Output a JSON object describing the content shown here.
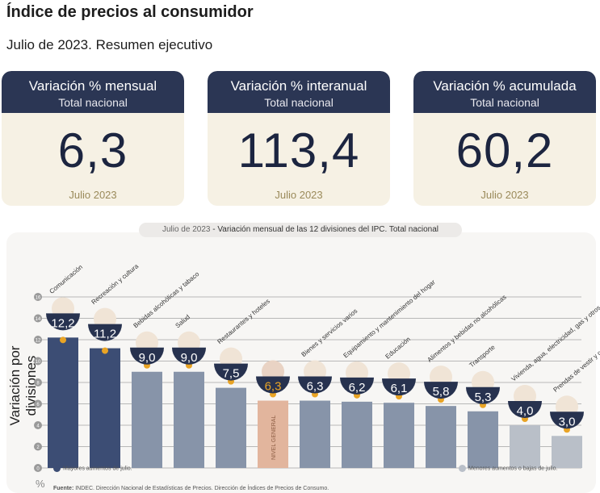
{
  "header": {
    "title": "Índice de precios al consumidor",
    "subtitle": "Julio de 2023. Resumen ejecutivo"
  },
  "cards": [
    {
      "title": "Variación % mensual",
      "sub": "Total nacional",
      "value": "6,3",
      "footer": "Julio 2023"
    },
    {
      "title": "Variación % interanual",
      "sub": "Total nacional",
      "value": "113,4",
      "footer": "Julio 2023"
    },
    {
      "title": "Variación % acumulada",
      "sub": "Total nacional",
      "value": "60,2",
      "footer": "Julio 2023"
    }
  ],
  "chart_data": {
    "type": "bar",
    "title_date": "Julio de 2023",
    "title": " - Variación mensual de las 12 divisiones del IPC. Total nacional",
    "ylabel": "Variación por divisiones",
    "yunit": "%",
    "ylim": [
      0,
      16
    ],
    "yticks": [
      0,
      2,
      4,
      6,
      8,
      10,
      12,
      14,
      16
    ],
    "categories": [
      "Comunicación",
      "Recreación y cultura",
      "Bebidas alcohólicas y tabaco",
      "Salud",
      "Restaurantes y hoteles",
      "NIVEL GENERAL",
      "Bienes y servicios varios",
      "Equipamiento y mantenimiento del hogar",
      "Educación",
      "Alimentos y bebidas no alcohólicas",
      "Transporte",
      "Vivienda, agua, electricidad, gas y otros combustibles",
      "Prendas de vestir y calzado"
    ],
    "values": [
      12.2,
      11.2,
      9.0,
      9.0,
      7.5,
      6.3,
      6.3,
      6.2,
      6.1,
      5.8,
      5.3,
      4.0,
      3.0
    ],
    "value_labels": [
      "12,2",
      "11,2",
      "9,0",
      "9,0",
      "7,5",
      "6,3",
      "6,3",
      "6,2",
      "6,1",
      "5,8",
      "5,3",
      "4,0",
      "3,0"
    ],
    "groups": [
      "high",
      "high",
      "mid",
      "mid",
      "mid",
      "general",
      "mid",
      "mid",
      "mid",
      "mid",
      "mid",
      "low",
      "low"
    ],
    "colors": {
      "high": "#3c4d74",
      "mid": "#8794a9",
      "low": "#b9bfc8",
      "general": "#e2b59d",
      "bowl": "#27324f",
      "dot": "#e9a425"
    },
    "legend": {
      "high": "Mayores aumentos de julio.",
      "low": "Menores aumentos o bajas de julio."
    },
    "source_label": "Fuente:",
    "source": " INDEC. Dirección Nacional de Estadísticas de Precios. Dirección de Índices de Precios de Consumo."
  }
}
